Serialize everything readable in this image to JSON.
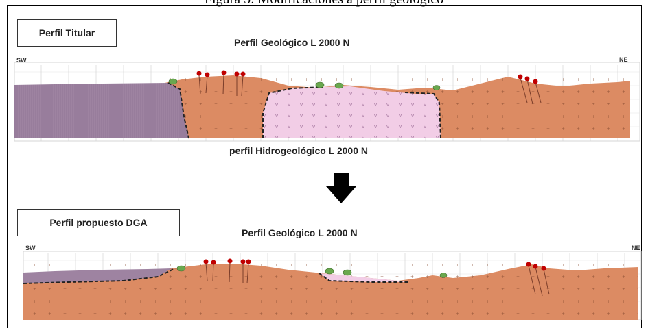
{
  "figure": {
    "caption": "Figura 5: Modificaciones a perfil geológico"
  },
  "top_panel": {
    "box_label": "Perfil Titular",
    "section_title": "Perfil Geológico L 2000 N",
    "left_dir": "SW",
    "right_dir": "NE"
  },
  "middle": {
    "section_title": "perfil Hidrogeológico L 2000 N",
    "arrow_icon": "down-arrow-icon"
  },
  "bottom_panel": {
    "box_label": "Perfil propuesto DGA",
    "section_title": "Perfil Geológico L 2000 N",
    "left_dir": "SW",
    "right_dir": "NE"
  },
  "colors": {
    "purple_unit": "#9e83a1",
    "orange_unit": "#dc8b63",
    "pink_unit": "#f2cde6",
    "green_marker": "#6aa84f",
    "red_marker": "#c00000",
    "contact_line": "#222222"
  }
}
